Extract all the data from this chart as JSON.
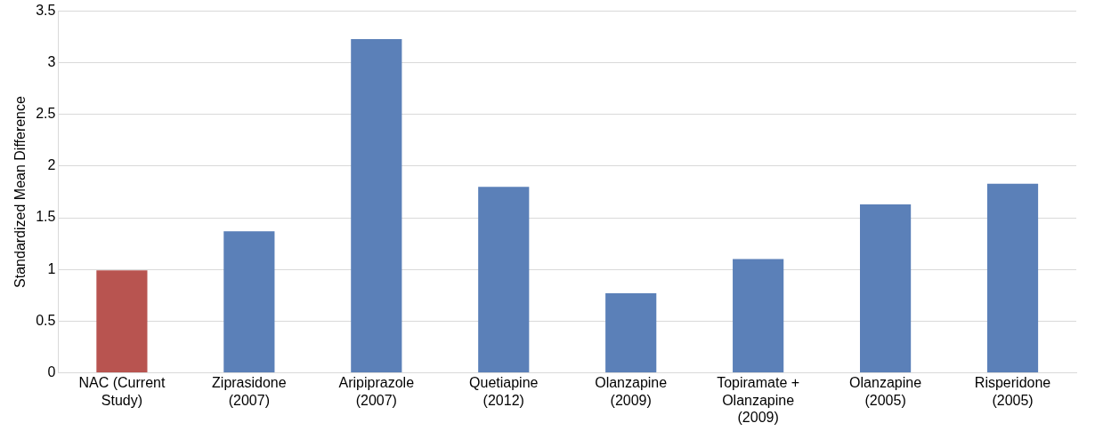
{
  "chart_data": {
    "type": "bar",
    "ylabel": "Standardized Mean Difference",
    "categories": [
      "NAC (Current Study)",
      "Ziprasidone (2007)",
      "Aripiprazole (2007)",
      "Quetiapine (2012)",
      "Olanzapine (2009)",
      "Topiramate + Olanzapine (2009)",
      "Olanzapine (2005)",
      "Risperidone (2005)"
    ],
    "values": [
      0.99,
      1.37,
      3.23,
      1.8,
      0.77,
      1.1,
      1.63,
      1.83
    ],
    "colors": [
      "#b85450",
      "#5b80b8",
      "#5b80b8",
      "#5b80b8",
      "#5b80b8",
      "#5b80b8",
      "#5b80b8",
      "#5b80b8"
    ],
    "ylim": [
      0,
      3.5
    ],
    "yticks": [
      0,
      0.5,
      1,
      1.5,
      2,
      2.5,
      3,
      3.5
    ],
    "grid": "y",
    "legend": false
  }
}
